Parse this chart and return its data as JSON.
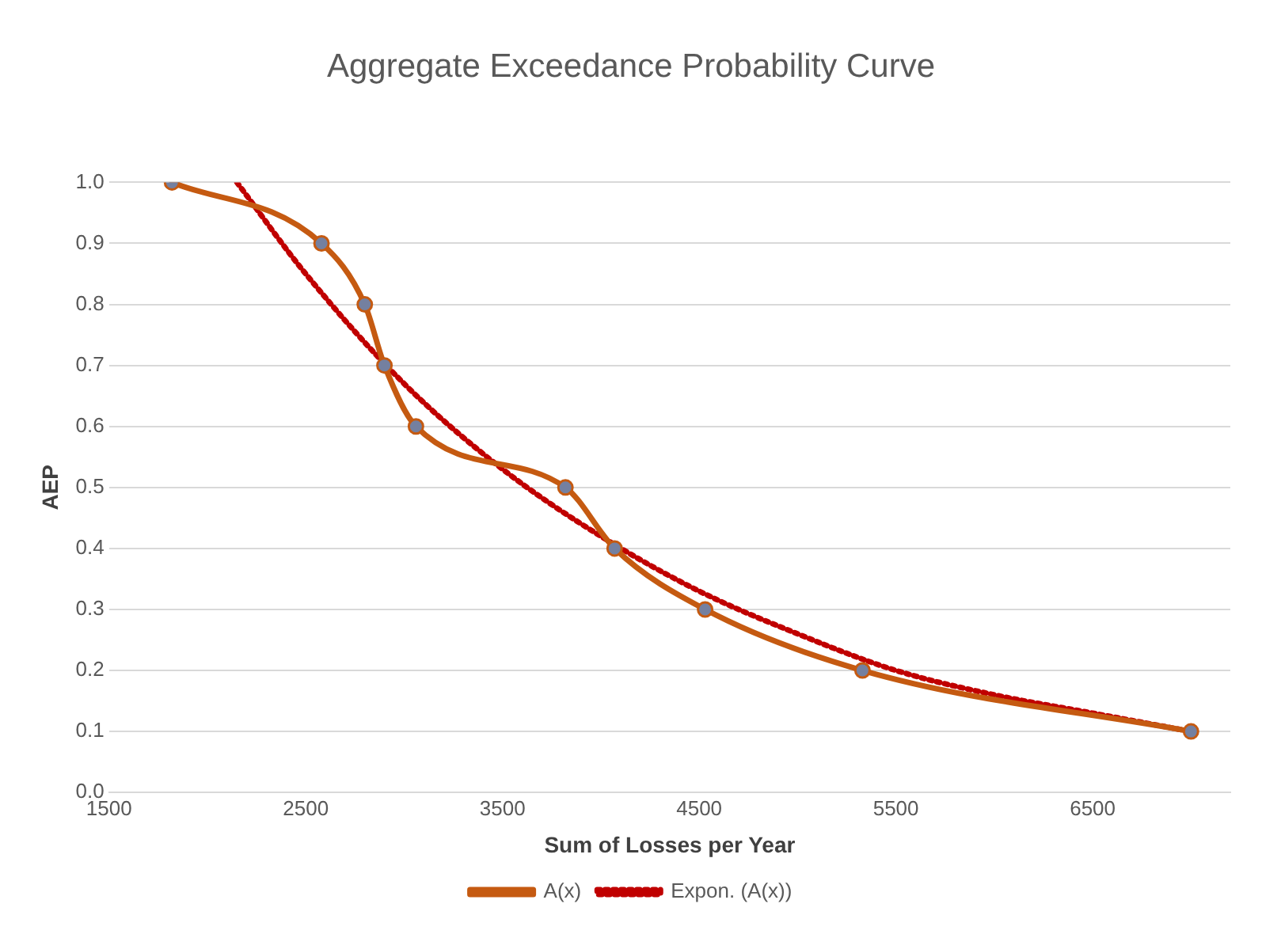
{
  "chart_data": {
    "type": "line",
    "title": "Aggregate Exceedance Probability Curve",
    "xlabel": "Sum of Losses per Year",
    "ylabel": "AEP",
    "xlim": [
      1500,
      7200
    ],
    "xticks": [
      1500,
      2500,
      3500,
      4500,
      5500,
      6500
    ],
    "ylim": [
      0,
      1
    ],
    "yticks": [
      {
        "value": 0,
        "label": "0.0"
      },
      0.1,
      0.2,
      0.3,
      0.4,
      0.5,
      0.6,
      0.7,
      0.8,
      0.9,
      {
        "value": 1,
        "label": "1.0"
      }
    ],
    "grid": "y",
    "legend": "bottom",
    "series": [
      {
        "name": "A(x)",
        "color": "#c55a11",
        "marker": "circle",
        "line_style": "solid",
        "x": [
          1820,
          2580,
          2800,
          2900,
          3060,
          3820,
          4070,
          4530,
          5330,
          7000
        ],
        "values": [
          1.0,
          0.9,
          0.8,
          0.7,
          0.6,
          0.5,
          0.4,
          0.3,
          0.2,
          0.1
        ]
      },
      {
        "name": "Expon. (A(x))",
        "color": "#c00000",
        "marker": "none",
        "line_style": "dotted",
        "x": [
          2150,
          2500,
          3000,
          3500,
          4000,
          4500,
          5000,
          5500,
          6000,
          6500,
          7000
        ],
        "values": [
          1.0,
          0.85,
          0.67,
          0.53,
          0.42,
          0.33,
          0.26,
          0.2,
          0.16,
          0.13,
          0.1
        ]
      }
    ]
  }
}
